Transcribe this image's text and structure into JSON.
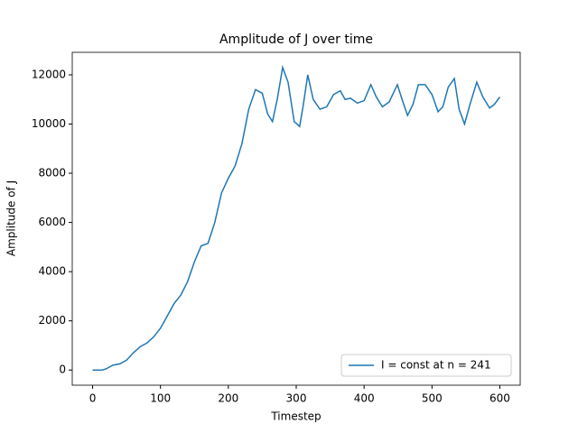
{
  "chart_data": {
    "type": "line",
    "title": "Amplitude of J over time",
    "x_label": "Timestep",
    "y_label": "Amplitude of J",
    "x": [
      0,
      10,
      15,
      20,
      30,
      40,
      50,
      60,
      70,
      80,
      90,
      100,
      110,
      120,
      130,
      140,
      150,
      160,
      170,
      180,
      190,
      200,
      210,
      220,
      230,
      240,
      250,
      258,
      265,
      272,
      280,
      288,
      297,
      305,
      310,
      317,
      325,
      335,
      345,
      355,
      365,
      372,
      380,
      390,
      400,
      410,
      418,
      427,
      437,
      449,
      456,
      464,
      472,
      480,
      490,
      500,
      509,
      516,
      524,
      533,
      540,
      548,
      556,
      566,
      575,
      585,
      592,
      600
    ],
    "series": [
      {
        "name": "I = const at n = 241",
        "color": "#1f77b4",
        "values": [
          0,
          0,
          5,
          50,
          200,
          250,
          400,
          700,
          950,
          1100,
          1350,
          1700,
          2200,
          2700,
          3050,
          3600,
          4400,
          5050,
          5150,
          6000,
          7200,
          7800,
          8300,
          9200,
          10600,
          11400,
          11250,
          10400,
          10100,
          11000,
          12300,
          11700,
          10100,
          9900,
          10700,
          12000,
          11000,
          10600,
          10700,
          11200,
          11350,
          11000,
          11050,
          10850,
          10950,
          11600,
          11100,
          10700,
          10900,
          11600,
          11000,
          10350,
          10800,
          11600,
          11600,
          11200,
          10500,
          10700,
          11500,
          11850,
          10600,
          10000,
          10800,
          11700,
          11100,
          10650,
          10800,
          11100
        ]
      }
    ],
    "xlim": [
      -30,
      630
    ],
    "ylim": [
      -615,
      12915
    ],
    "xticks": [
      0,
      100,
      200,
      300,
      400,
      500,
      600
    ],
    "yticks": [
      0,
      2000,
      4000,
      6000,
      8000,
      10000,
      12000
    ],
    "legend": "lower right"
  }
}
